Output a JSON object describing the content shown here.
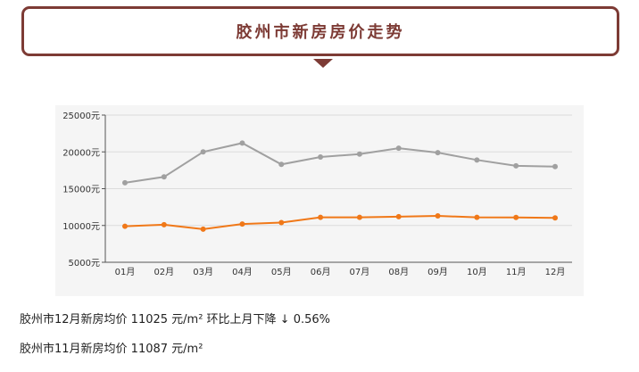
{
  "header": {
    "title": "胶州市新房房价走势"
  },
  "colors": {
    "brand": "#7d3b35",
    "series_gray": "#a0a0a0",
    "series_orange": "#f07818"
  },
  "chart_data": {
    "type": "line",
    "title": "",
    "xlabel": "",
    "ylabel": "",
    "categories": [
      "01月",
      "02月",
      "03月",
      "04月",
      "05月",
      "06月",
      "07月",
      "08月",
      "09月",
      "10月",
      "11月",
      "12月"
    ],
    "series": [
      {
        "values": [
          15800,
          16600,
          20000,
          21200,
          18300,
          19300,
          19700,
          20500,
          19900,
          18900,
          18100,
          18000
        ]
      },
      {
        "values": [
          9900,
          10100,
          9500,
          10200,
          10400,
          11100,
          11100,
          11200,
          11300,
          11100,
          11087,
          11025
        ]
      }
    ],
    "y_ticks": [
      "25000元",
      "20000元",
      "15000元",
      "10000元",
      "5000元"
    ],
    "ylim": [
      5000,
      25000
    ],
    "grid": true,
    "legend": "none"
  },
  "summary": {
    "line1": "胶州市12月新房均价 11025 元/m² 环比上月下降 ↓ 0.56%",
    "line2": "胶州市11月新房均价 11087 元/m²"
  }
}
